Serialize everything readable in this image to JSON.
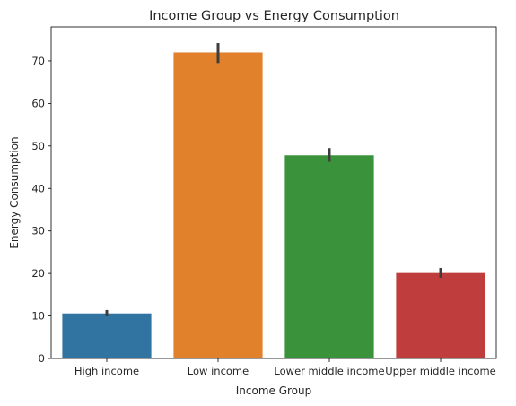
{
  "chart_data": {
    "type": "bar",
    "title": "Income Group vs Energy Consumption",
    "xlabel": "Income Group",
    "ylabel": "Energy Consumption",
    "categories": [
      "High income",
      "Low income",
      "Lower middle income",
      "Upper middle income"
    ],
    "values": [
      10.6,
      72.0,
      47.8,
      20.1
    ],
    "error_low": [
      9.9,
      69.5,
      46.3,
      19.0
    ],
    "error_high": [
      11.4,
      74.2,
      49.5,
      21.3
    ],
    "colors": [
      "#3274a1",
      "#e1812c",
      "#3a923a",
      "#c03d3e"
    ],
    "ylim": [
      0,
      78
    ],
    "yticks": [
      0,
      10,
      20,
      30,
      40,
      50,
      60,
      70
    ],
    "grid": false,
    "legend": "none"
  }
}
